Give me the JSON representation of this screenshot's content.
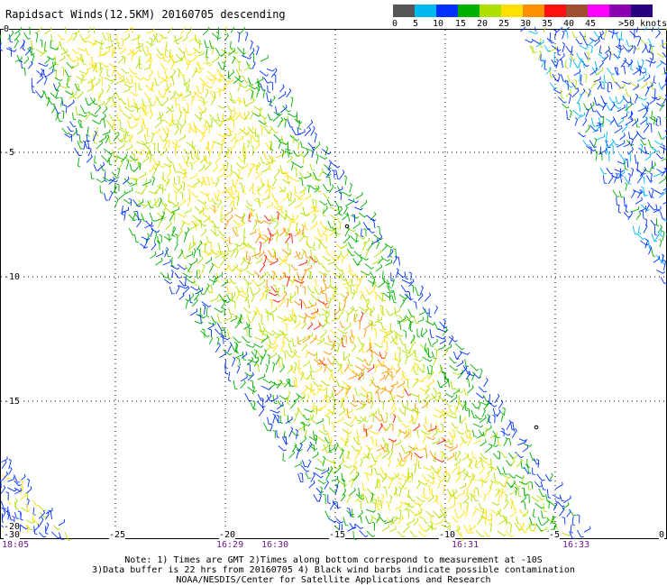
{
  "title": "Rapidsact Winds(12.5KM) 20160705 descending",
  "colorbar": {
    "swatches": [
      {
        "color": "#555555",
        "name": "0-5"
      },
      {
        "color": "#00b8f0",
        "name": "5-10"
      },
      {
        "color": "#0030ff",
        "name": "10-15"
      },
      {
        "color": "#00b000",
        "name": "15-20"
      },
      {
        "color": "#b0e000",
        "name": "20-25"
      },
      {
        "color": "#ffe000",
        "name": "25-30"
      },
      {
        "color": "#ff9000",
        "name": "30-35"
      },
      {
        "color": "#ff1010",
        "name": "35-40"
      },
      {
        "color": "#a05030",
        "name": "40-45"
      },
      {
        "color": "#ff00ff",
        "name": "45-50"
      },
      {
        "color": "#8a00b0",
        "name": "45+"
      },
      {
        "color": "#280080",
        "name": ">50"
      }
    ],
    "labels": [
      "0",
      "5",
      "10",
      "15",
      "20",
      "25",
      "30",
      "35",
      "40",
      "45",
      ">50 knots"
    ]
  },
  "map": {
    "lat_labels": [
      "0",
      "-5",
      "-10",
      "-15",
      "-20"
    ],
    "lon_labels": [
      "-30",
      "-25",
      "-20",
      "-15",
      "-10",
      "-5",
      "0"
    ],
    "time_labels": [
      "18:05",
      "16:29",
      "16:30",
      "16:31",
      "16:33"
    ]
  },
  "notes": {
    "line1": "Note: 1) Times are GMT 2)Times along bottom correspond to measurement at -10S",
    "line2": "3)Data buffer is 22 hrs from 20160705 4) Black wind barbs indicate possible contamination",
    "line3": "NOAA/NESDIS/Center for Satellite Applications and Research"
  }
}
